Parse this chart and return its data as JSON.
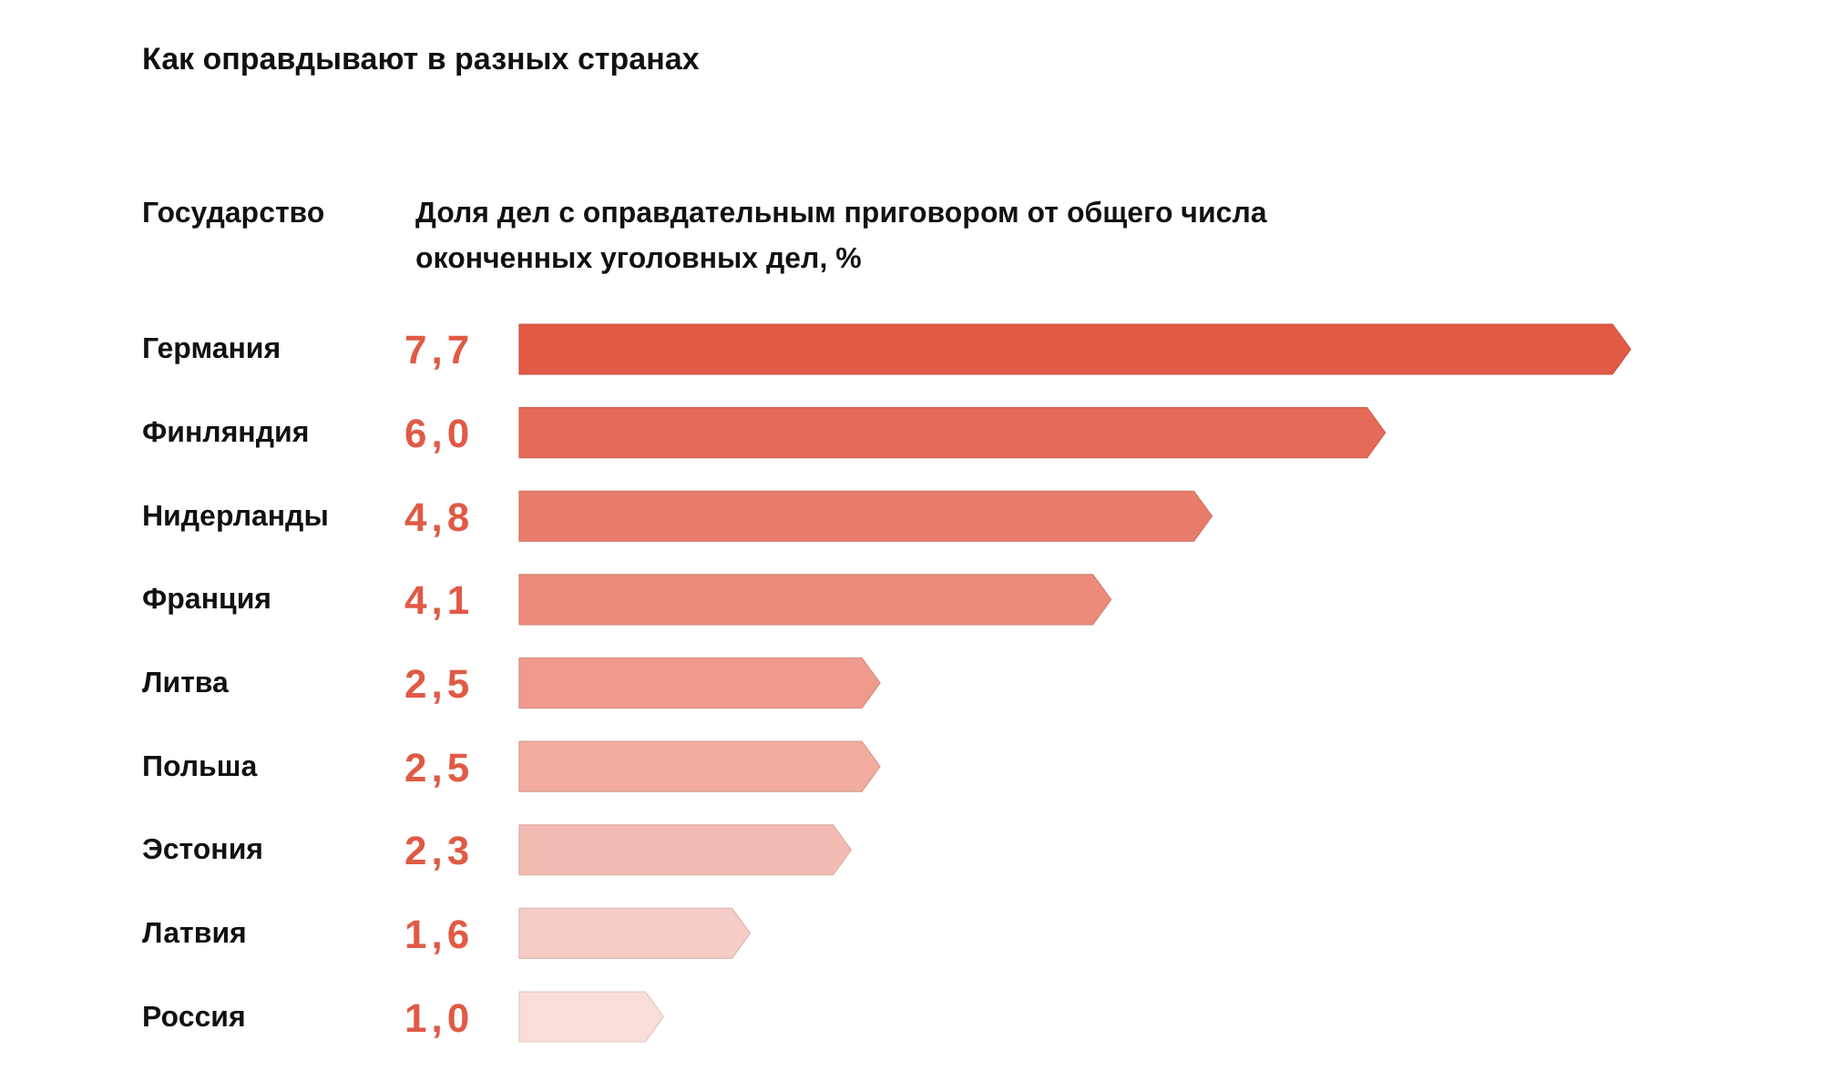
{
  "chart_data": {
    "type": "bar",
    "orientation": "horizontal",
    "title": "Как оправдывают в разных странах",
    "ylabel": "Государство",
    "xlabel": "Доля дел с оправдательным приговором от общего числа оконченных уголовных дел, %",
    "categories": [
      "Германия",
      "Финляндия",
      "Нидерланды",
      "Франция",
      "Литва",
      "Польша",
      "Эстония",
      "Латвия",
      "Россия"
    ],
    "values": [
      7.7,
      6.0,
      4.8,
      4.1,
      2.5,
      2.5,
      2.3,
      1.6,
      1.0
    ],
    "value_labels": [
      "7,7",
      "6,0",
      "4,8",
      "4,1",
      "2,5",
      "2,5",
      "2,3",
      "1,6",
      "1,0"
    ],
    "colors": [
      "#e05a45",
      "#e56a57",
      "#e97b6b",
      "#ec8b7c",
      "#ef9a8c",
      "#f1ab9f",
      "#f3bcb2",
      "#f6cdc6",
      "#f9ddd8"
    ]
  }
}
